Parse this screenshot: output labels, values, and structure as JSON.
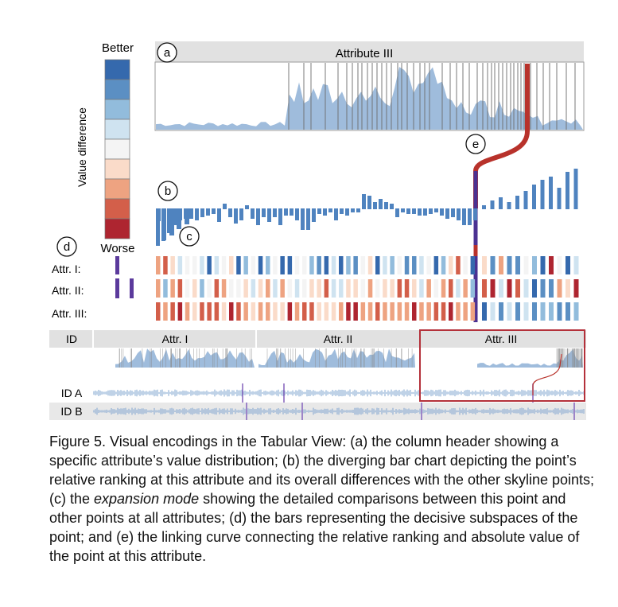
{
  "legend": {
    "top_label": "Better",
    "bottom_label": "Worse",
    "axis_label": "Value difference",
    "colors": [
      "#3569ad",
      "#5b8fc3",
      "#92bcdc",
      "#cfe3f0",
      "#f4f4f4",
      "#fadbc9",
      "#eea381",
      "#d35f4a",
      "#ae2530"
    ]
  },
  "markers": {
    "a": "a",
    "b": "b",
    "c": "c",
    "d": "d",
    "e": "e"
  },
  "header_a": {
    "title": "Attribute III"
  },
  "rows": {
    "attr1": "Attr. I:",
    "attr2": "Attr. II:",
    "attr3": "Attr. III:"
  },
  "table": {
    "col_id": "ID",
    "col_attr1": "Attr. I",
    "col_attr2": "Attr. II",
    "col_attr3": "Attr. III",
    "row_a": "ID A",
    "row_b": "ID B"
  },
  "caption": {
    "part1": "Figure 5. Visual encodings in the Tabular View: (a) the column header showing a specific attribute’s value distribution; (b) the diverging bar chart depicting the point’s relative ranking at this attribute and its overall differences with the other skyline points; (c) the ",
    "em": "expansion mode",
    "part2": " showing the detailed comparisons between this point and other points at all attributes; (d) the bars representing the decisive subspaces of the point; and (e) the linking curve connecting the relative ranking and absolute value of the point at this attribute."
  },
  "colors": {
    "bar_blue": "#4f83bf",
    "area_blue": "#9fbcdc",
    "header_gray": "#e1e1e1",
    "link_red": "#b8322b",
    "link_purple": "#4b3192",
    "subspace_purple": "#5b3a9c",
    "frame_red": "#b4313a"
  }
}
